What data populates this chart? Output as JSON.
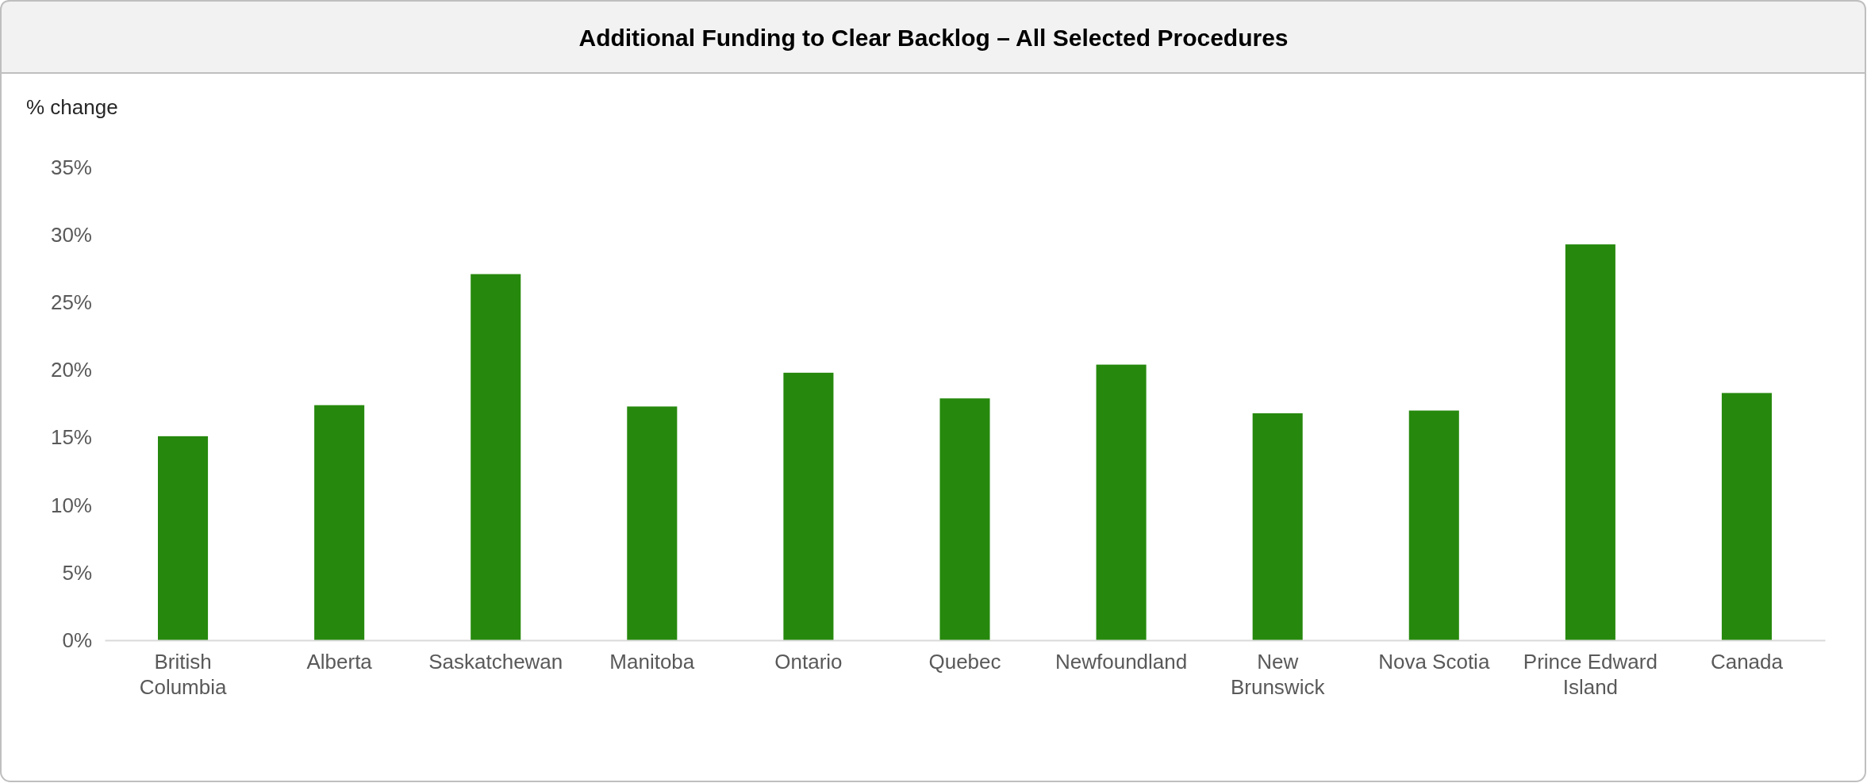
{
  "chart_data": {
    "type": "bar",
    "title": "Additional Funding to Clear Backlog – All Selected Procedures",
    "ylabel": "% change",
    "categories": [
      "British Columbia",
      "Alberta",
      "Saskatchewan",
      "Manitoba",
      "Ontario",
      "Quebec",
      "Newfoundland",
      "New Brunswick",
      "Nova Scotia",
      "Prince Edward Island",
      "Canada"
    ],
    "values": [
      15.1,
      17.4,
      27.1,
      17.3,
      19.8,
      17.9,
      20.4,
      16.8,
      17.0,
      29.3,
      18.3
    ],
    "color": "#26890d",
    "ylim": [
      0,
      35
    ],
    "yticks": [
      {
        "value": 0,
        "label": "0%"
      },
      {
        "value": 5,
        "label": "5%"
      },
      {
        "value": 10,
        "label": "10%"
      },
      {
        "value": 15,
        "label": "15%"
      },
      {
        "value": 20,
        "label": "20%"
      },
      {
        "value": 25,
        "label": "25%"
      },
      {
        "value": 30,
        "label": "30%"
      },
      {
        "value": 35,
        "label": "35%"
      }
    ],
    "grid": false
  }
}
